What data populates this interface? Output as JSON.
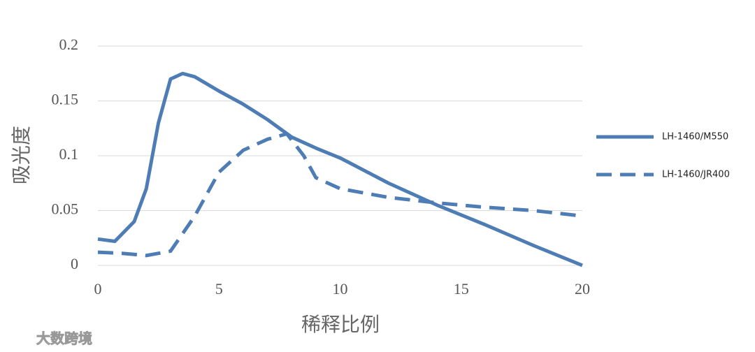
{
  "chart_data": {
    "type": "line",
    "y_label": "吸光度",
    "x_label": "稀释比例",
    "xlim": [
      0,
      20
    ],
    "xticks": [
      0,
      5,
      10,
      15,
      20
    ],
    "ylim": [
      0,
      0.2
    ],
    "yticks": [
      0,
      0.05,
      0.1,
      0.15,
      0.2
    ],
    "grid": true,
    "legend": "right",
    "series": [
      {
        "name": "LH-1460/M550",
        "color": "#4e7db5",
        "dash": false,
        "x": [
          0,
          0.7,
          1.5,
          2,
          2.5,
          3,
          3.5,
          4,
          5,
          6,
          7,
          8,
          9,
          10,
          12,
          14,
          16,
          18,
          20
        ],
        "values": [
          0.024,
          0.022,
          0.04,
          0.07,
          0.13,
          0.17,
          0.175,
          0.172,
          0.159,
          0.147,
          0.133,
          0.117,
          0.107,
          0.098,
          0.075,
          0.055,
          0.037,
          0.018,
          0
        ]
      },
      {
        "name": "LH-1460/JR400",
        "color": "#4e7db5",
        "dash": true,
        "x": [
          0,
          1,
          2,
          3,
          4,
          5,
          6,
          7,
          7.8,
          8.5,
          9,
          10,
          12,
          14,
          16,
          18,
          20
        ],
        "values": [
          0.012,
          0.011,
          0.009,
          0.013,
          0.045,
          0.085,
          0.105,
          0.115,
          0.12,
          0.1,
          0.08,
          0.07,
          0.062,
          0.057,
          0.053,
          0.05,
          0.045
        ]
      }
    ],
    "watermark": "大数跨境"
  }
}
